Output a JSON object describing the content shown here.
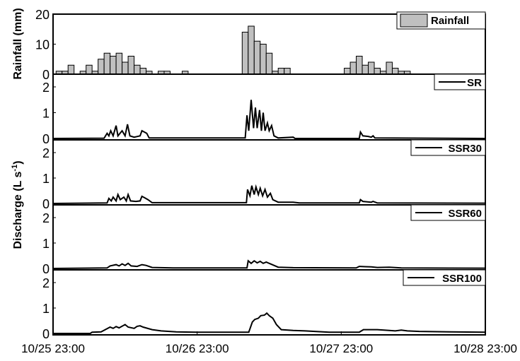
{
  "chart_data": [
    {
      "type": "bar",
      "title": "",
      "ylabel": "Rainfall (mm)",
      "legend": "Rainfall",
      "legend_position": "top-right",
      "ylim": [
        0,
        20
      ],
      "yticks": [
        "0",
        "10",
        "20"
      ],
      "bar_color": "#c0c0c0",
      "x_unit": "hours since 10/25 23:00",
      "bars": [
        [
          1,
          1
        ],
        [
          2,
          1
        ],
        [
          3,
          3
        ],
        [
          5,
          1
        ],
        [
          6,
          3
        ],
        [
          7,
          1
        ],
        [
          8,
          5
        ],
        [
          9,
          7
        ],
        [
          10,
          6
        ],
        [
          11,
          7
        ],
        [
          12,
          4
        ],
        [
          13,
          6
        ],
        [
          14,
          3
        ],
        [
          15,
          2
        ],
        [
          16,
          1
        ],
        [
          18,
          1
        ],
        [
          19,
          1
        ],
        [
          22,
          1
        ],
        [
          32,
          14
        ],
        [
          33,
          16
        ],
        [
          34,
          11
        ],
        [
          35,
          10
        ],
        [
          36,
          7
        ],
        [
          37,
          1
        ],
        [
          38,
          2
        ],
        [
          39,
          2
        ],
        [
          49,
          2
        ],
        [
          50,
          4
        ],
        [
          51,
          6
        ],
        [
          52,
          3
        ],
        [
          53,
          4
        ],
        [
          54,
          2
        ],
        [
          55,
          1
        ],
        [
          56,
          4
        ],
        [
          57,
          2
        ],
        [
          58,
          1
        ],
        [
          59,
          1
        ]
      ]
    },
    {
      "type": "line",
      "ylabel": "Discharge (L s-1)",
      "ylabel_main": "Discharge (L s",
      "ylabel_sup": "-1",
      "ylabel_close": ")",
      "ylim": [
        0,
        2.5
      ],
      "yticks": [
        "0",
        "1",
        "2"
      ],
      "xlim": [
        0,
        72
      ],
      "xticks": [
        {
          "label": "10/25 23:00",
          "hour": 0
        },
        {
          "label": "10/26 23:00",
          "hour": 24
        },
        {
          "label": "10/27 23:00",
          "hour": 48
        },
        {
          "label": "10/28 23:00",
          "hour": 72
        }
      ],
      "legend_position": "top-right",
      "series": [
        {
          "name": "SR",
          "points": [
            [
              0,
              0
            ],
            [
              8.5,
              0.01
            ],
            [
              9,
              0.2
            ],
            [
              9.3,
              0.1
            ],
            [
              9.6,
              0.3
            ],
            [
              10,
              0.1
            ],
            [
              10.5,
              0.5
            ],
            [
              10.8,
              0.1
            ],
            [
              11.5,
              0.3
            ],
            [
              12,
              0.1
            ],
            [
              12.4,
              0.55
            ],
            [
              12.8,
              0.1
            ],
            [
              13.5,
              0.05
            ],
            [
              14.5,
              0.1
            ],
            [
              14.8,
              0.3
            ],
            [
              15.2,
              0.25
            ],
            [
              15.6,
              0.2
            ],
            [
              16,
              0.02
            ],
            [
              32,
              0.02
            ],
            [
              32.3,
              0.9
            ],
            [
              32.6,
              0.3
            ],
            [
              33,
              1.5
            ],
            [
              33.4,
              0.4
            ],
            [
              33.7,
              1.2
            ],
            [
              34,
              0.4
            ],
            [
              34.4,
              1.1
            ],
            [
              34.7,
              0.3
            ],
            [
              35,
              1.0
            ],
            [
              35.3,
              0.3
            ],
            [
              35.7,
              0.6
            ],
            [
              36,
              0.3
            ],
            [
              36.4,
              0.5
            ],
            [
              36.8,
              0.1
            ],
            [
              37.5,
              0.02
            ],
            [
              40,
              0.05
            ],
            [
              40.3,
              0
            ],
            [
              51,
              0
            ],
            [
              51.2,
              0.25
            ],
            [
              51.6,
              0.1
            ],
            [
              52.5,
              0.08
            ],
            [
              53,
              0.05
            ],
            [
              53.3,
              0.1
            ],
            [
              53.6,
              0.02
            ],
            [
              72,
              0
            ]
          ]
        },
        {
          "name": "SSR30",
          "points": [
            [
              0,
              0
            ],
            [
              9,
              0.02
            ],
            [
              9.3,
              0.2
            ],
            [
              9.7,
              0.1
            ],
            [
              10,
              0.25
            ],
            [
              10.5,
              0.1
            ],
            [
              10.8,
              0.35
            ],
            [
              11.2,
              0.15
            ],
            [
              11.8,
              0.25
            ],
            [
              12.2,
              0.1
            ],
            [
              12.5,
              0.35
            ],
            [
              12.9,
              0.1
            ],
            [
              13.8,
              0.08
            ],
            [
              14.5,
              0.1
            ],
            [
              14.8,
              0.28
            ],
            [
              15.3,
              0.22
            ],
            [
              15.8,
              0.15
            ],
            [
              16.5,
              0.03
            ],
            [
              32.2,
              0.03
            ],
            [
              32.4,
              0.55
            ],
            [
              32.8,
              0.3
            ],
            [
              33.1,
              0.7
            ],
            [
              33.5,
              0.35
            ],
            [
              33.8,
              0.65
            ],
            [
              34.2,
              0.35
            ],
            [
              34.5,
              0.6
            ],
            [
              34.9,
              0.3
            ],
            [
              35.3,
              0.55
            ],
            [
              35.7,
              0.25
            ],
            [
              36.2,
              0.4
            ],
            [
              36.6,
              0.15
            ],
            [
              37.5,
              0.05
            ],
            [
              40,
              0.05
            ],
            [
              41,
              0.02
            ],
            [
              51,
              0.02
            ],
            [
              51.2,
              0.15
            ],
            [
              51.6,
              0.08
            ],
            [
              53,
              0.05
            ],
            [
              53.3,
              0.08
            ],
            [
              54,
              0.02
            ],
            [
              72,
              0.01
            ]
          ]
        },
        {
          "name": "SSR60",
          "points": [
            [
              0,
              0
            ],
            [
              9,
              0.02
            ],
            [
              9.5,
              0.1
            ],
            [
              10.5,
              0.15
            ],
            [
              11,
              0.1
            ],
            [
              11.5,
              0.18
            ],
            [
              12,
              0.12
            ],
            [
              12.5,
              0.2
            ],
            [
              13,
              0.1
            ],
            [
              14,
              0.08
            ],
            [
              14.8,
              0.15
            ],
            [
              15.5,
              0.12
            ],
            [
              16.5,
              0.04
            ],
            [
              20,
              0.02
            ],
            [
              32.3,
              0.02
            ],
            [
              32.5,
              0.3
            ],
            [
              33,
              0.2
            ],
            [
              33.5,
              0.3
            ],
            [
              34,
              0.22
            ],
            [
              34.5,
              0.28
            ],
            [
              35,
              0.2
            ],
            [
              35.5,
              0.25
            ],
            [
              36.5,
              0.15
            ],
            [
              37.5,
              0.05
            ],
            [
              40,
              0.03
            ],
            [
              50.5,
              0.02
            ],
            [
              51,
              0.08
            ],
            [
              52,
              0.07
            ],
            [
              53,
              0.06
            ],
            [
              54,
              0.04
            ],
            [
              56,
              0.05
            ],
            [
              58,
              0.02
            ],
            [
              72,
              0.01
            ]
          ]
        },
        {
          "name": "SSR100",
          "points": [
            [
              0,
              0
            ],
            [
              6.2,
              0
            ],
            [
              6.5,
              0.05
            ],
            [
              8,
              0.06
            ],
            [
              9.5,
              0.25
            ],
            [
              10,
              0.2
            ],
            [
              10.5,
              0.27
            ],
            [
              11,
              0.22
            ],
            [
              12,
              0.35
            ],
            [
              12.5,
              0.25
            ],
            [
              13.5,
              0.2
            ],
            [
              14,
              0.28
            ],
            [
              14.5,
              0.3
            ],
            [
              15,
              0.25
            ],
            [
              16.5,
              0.15
            ],
            [
              18,
              0.1
            ],
            [
              20.5,
              0.06
            ],
            [
              24,
              0.05
            ],
            [
              32.6,
              0.05
            ],
            [
              33.2,
              0.45
            ],
            [
              33.6,
              0.55
            ],
            [
              34.2,
              0.6
            ],
            [
              34.6,
              0.7
            ],
            [
              35.2,
              0.72
            ],
            [
              35.6,
              0.8
            ],
            [
              36,
              0.7
            ],
            [
              36.6,
              0.6
            ],
            [
              37.2,
              0.35
            ],
            [
              38,
              0.15
            ],
            [
              40,
              0.12
            ],
            [
              42,
              0.1
            ],
            [
              46,
              0.05
            ],
            [
              51,
              0.05
            ],
            [
              51.7,
              0.15
            ],
            [
              54,
              0.15
            ],
            [
              56,
              0.12
            ],
            [
              57,
              0.1
            ],
            [
              58,
              0.13
            ],
            [
              59,
              0.1
            ],
            [
              61,
              0.08
            ],
            [
              66,
              0.06
            ],
            [
              72,
              0.05
            ]
          ]
        }
      ]
    }
  ]
}
